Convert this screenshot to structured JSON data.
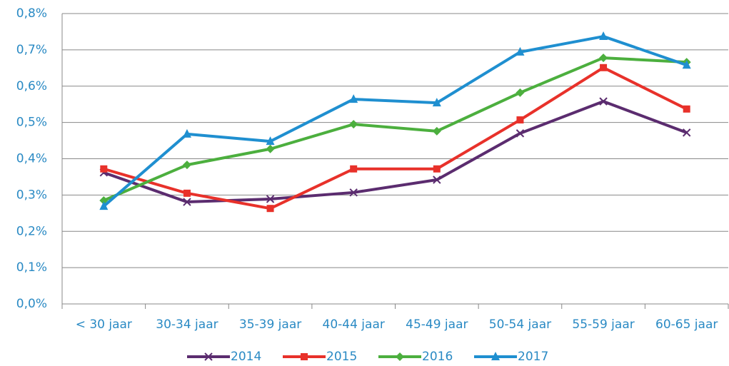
{
  "chart_data": {
    "type": "line",
    "categories": [
      "< 30 jaar",
      "30-34 jaar",
      "35-39 jaar",
      "40-44 jaar",
      "45-49 jaar",
      "50-54 jaar",
      "55-59 jaar",
      "60-65 jaar"
    ],
    "series": [
      {
        "name": "2014",
        "color": "#5b2c6f",
        "marker": "x",
        "values": [
          0.362,
          0.281,
          0.289,
          0.307,
          0.342,
          0.47,
          0.558,
          0.472
        ]
      },
      {
        "name": "2015",
        "color": "#e8312a",
        "marker": "square",
        "values": [
          0.372,
          0.305,
          0.263,
          0.372,
          0.372,
          0.507,
          0.651,
          0.537
        ]
      },
      {
        "name": "2016",
        "color": "#4caf3e",
        "marker": "diamond",
        "values": [
          0.285,
          0.383,
          0.427,
          0.495,
          0.476,
          0.582,
          0.678,
          0.666
        ]
      },
      {
        "name": "2017",
        "color": "#1f8fd0",
        "marker": "triangle",
        "values": [
          0.269,
          0.468,
          0.448,
          0.564,
          0.554,
          0.694,
          0.737,
          0.658
        ]
      }
    ],
    "ylim": [
      0,
      0.8
    ],
    "yticks": [
      {
        "value": 0,
        "label": "0,0%"
      },
      {
        "value": 0.1,
        "label": "0,1%"
      },
      {
        "value": 0.2,
        "label": "0,2%"
      },
      {
        "value": 0.3,
        "label": "0,3%"
      },
      {
        "value": 0.4,
        "label": "0,4%"
      },
      {
        "value": 0.5,
        "label": "0,5%"
      },
      {
        "value": 0.6,
        "label": "0,6%"
      },
      {
        "value": 0.7,
        "label": "0,7%"
      },
      {
        "value": 0.8,
        "label": "0,8%"
      }
    ],
    "grid": true,
    "legend": "bottom"
  }
}
